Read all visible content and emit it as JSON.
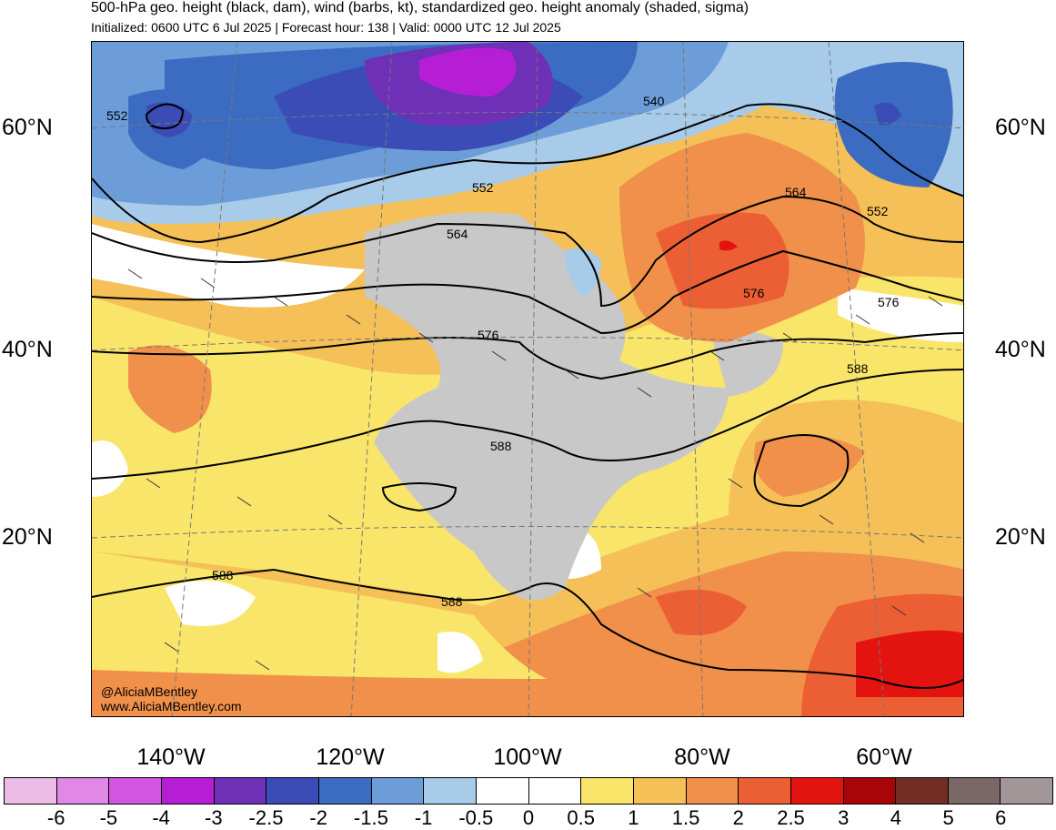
{
  "title": "500-hPa geo. height (black, dam), wind (barbs, kt), standardized geo. height anomaly (shaded, sigma)",
  "subtitle": "Initialized: 0600 UTC 6 Jul 2025 | Forecast hour: 138 | Valid: 0000 UTC 12 Jul 2025",
  "lat_labels": [
    "60°N",
    "40°N",
    "20°N"
  ],
  "lon_labels": [
    "140°W",
    "120°W",
    "100°W",
    "80°W",
    "60°W"
  ],
  "contour_labels": [
    "552",
    "540",
    "552",
    "564",
    "564",
    "552",
    "576",
    "576",
    "576",
    "588",
    "588",
    "588",
    "588"
  ],
  "credit": {
    "handle": "@AliciaMBentley",
    "url": "www.AliciaMBentley.com"
  },
  "colorbar": {
    "labels": [
      "-6",
      "-5",
      "-4",
      "-3",
      "-2.5",
      "-2",
      "-1.5",
      "-1",
      "-0.5",
      "0",
      "0.5",
      "1",
      "1.5",
      "2",
      "2.5",
      "3",
      "4",
      "5",
      "6"
    ],
    "colors": [
      "#ecbce6",
      "#e187e5",
      "#d256df",
      "#b61ed5",
      "#6d30b7",
      "#3b4cb6",
      "#3c6cc1",
      "#6d9dd8",
      "#a7cbe9",
      "#ffffff",
      "#ffffff",
      "#f9e56a",
      "#f4c057",
      "#f0904a",
      "#ec5f34",
      "#e3140f",
      "#a80508",
      "#722d25",
      "#7a6766",
      "#a29698"
    ]
  },
  "map_colors": {
    "neg_strong": "#b61ed5",
    "neg_mid": "#3c6cc1",
    "neg_light": "#a7cbe9",
    "land_gray": "#c8c8c8",
    "pos_light": "#f9e56a",
    "pos_mid": "#f4c057",
    "pos_high": "#f0904a",
    "pos_strong": "#ec5f34",
    "pos_max": "#e3140f"
  }
}
